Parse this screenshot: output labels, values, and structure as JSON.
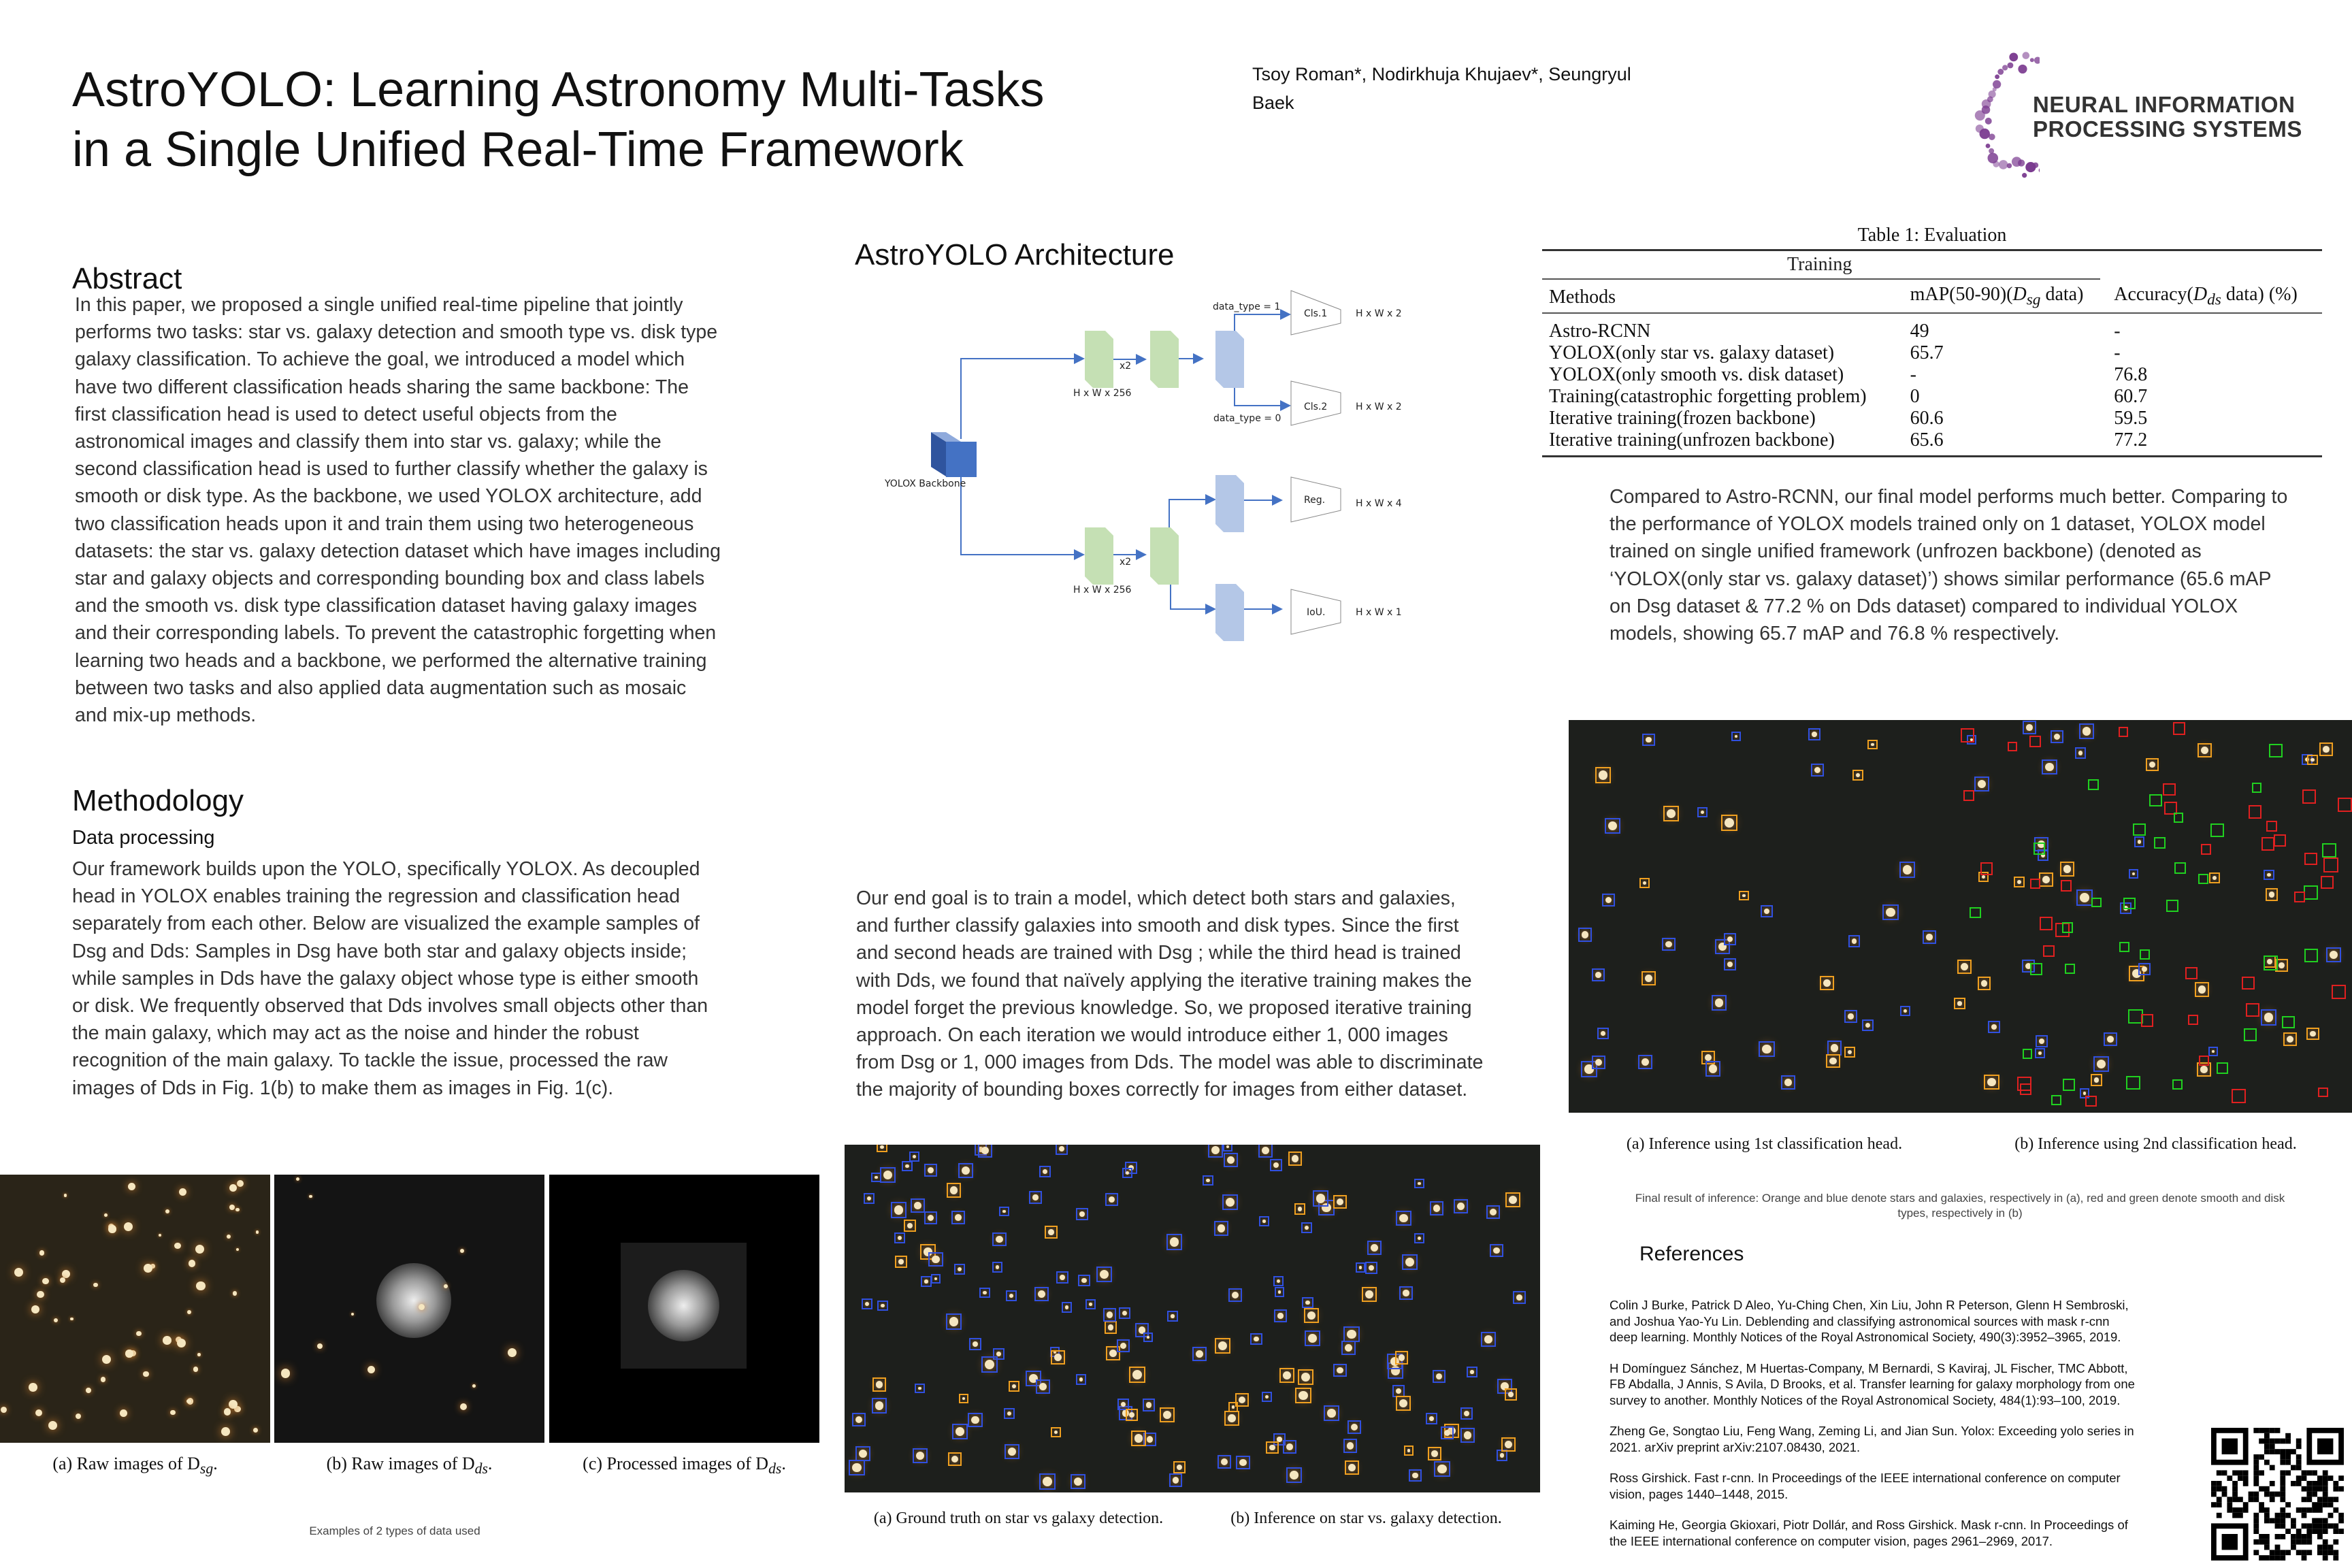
{
  "header": {
    "title_line1": "AstroYOLO: Learning Astronomy Multi-Tasks",
    "title_line2": "in a Single Unified Real-Time Framework",
    "authors_line1": "Tsoy Roman*, Nodirkhuja Khujaev*, Seungryul",
    "authors_line2": "Baek",
    "logo_line1": "NEURAL INFORMATION",
    "logo_line2": "PROCESSING SYSTEMS",
    "logo_color": "#7a3a8f"
  },
  "abstract": {
    "heading": "Abstract",
    "text": "In this paper, we proposed a single unified real-time pipeline that jointly performs two tasks: star vs. galaxy detection and smooth type vs. disk type galaxy classification. To achieve the goal, we introduced a model which have two different classification heads sharing the same backbone: The first classification head is used to detect useful objects from the astronomical images and classify them into star vs. galaxy; while the second classification head is used to further classify whether the galaxy is smooth or disk type. As the backbone, we used YOLOX architecture, add two classification heads upon it and train them using two heterogeneous datasets: the star vs. galaxy detection dataset which have images including star and galaxy objects and corresponding bounding box and class labels and the smooth vs. disk type classification dataset having galaxy images and their corresponding labels. To prevent the catastrophic forgetting when learning two heads and a backbone, we performed the alternative training between two tasks and also applied data augmentation such as mosaic and mix-up methods."
  },
  "methodology": {
    "heading": "Methodology",
    "subheading": "Data processing",
    "text": "Our framework builds upon the YOLO, specifically YOLOX. As decoupled head in YOLOX enables training the regression and classification head separately from each other. Below are visualized the example samples of Dsg and Dds: Samples in Dsg have both star and galaxy objects inside; while samples in Dds have the galaxy object whose type is either smooth or disk. We frequently observed that Dds involves small objects other than the main galaxy, which may act as the noise and hinder the robust recognition of the main galaxy. To tackle the issue, processed the raw images of Dds in Fig. 1(b) to make them as images in Fig. 1(c).",
    "fig_captions": [
      "(a) Raw images of D",
      "(b) Raw images of D",
      "(c) Processed images of D"
    ],
    "fig_subscripts": [
      "sg",
      "ds",
      "ds"
    ],
    "fig_note": "Examples of 2 types of data used"
  },
  "architecture": {
    "heading": "AstroYOLO Architecture",
    "backbone": "YOLOX Backbone",
    "dim256": "H x W x 256",
    "x2": "x2",
    "dt1": "data_type = 1",
    "dt0": "data_type = 0",
    "heads": [
      {
        "name": "Cls.1",
        "dim": "H x W x 2"
      },
      {
        "name": "Cls.2",
        "dim": "H x W x 2"
      },
      {
        "name": "Reg.",
        "dim": "H x W x 4"
      },
      {
        "name": "IoU.",
        "dim": "H x W x 1"
      }
    ],
    "text": "Our end goal is to train a model, which detect both stars and galaxies, and further classify galaxies into smooth and disk types. Since the first and second heads are trained with Dsg ; while the third head is trained with Dds, we found that naïvely applying the iterative training makes the model forget the previous knowledge. So, we proposed iterative training approach. On each iteration we would introduce either 1, 000 images from Dsg or 1, 000 images from Dds. The model was able to discriminate the majority of bounding boxes correctly for images from either dataset.",
    "fig_captions": [
      "(a) Ground truth on star vs galaxy detection.",
      "(b) Inference on star vs. galaxy detection."
    ]
  },
  "table": {
    "caption": "Table 1: Evaluation",
    "group": "Training",
    "headers": [
      "Methods",
      "mAP(50-90)(",
      "Accuracy("
    ],
    "header_math": [
      "D",
      "sg",
      " data)",
      "D",
      "ds",
      " data) (%)"
    ],
    "rows": [
      [
        "Astro-RCNN",
        "49",
        "-"
      ],
      [
        "YOLOX(only star vs. galaxy dataset)",
        "65.7",
        "-"
      ],
      [
        "YOLOX(only smooth vs. disk dataset)",
        "-",
        "76.8"
      ],
      [
        "Training(catastrophic forgetting problem)",
        "0",
        "60.7"
      ],
      [
        "Iterative training(frozen backbone)",
        "60.6",
        "59.5"
      ],
      [
        "Iterative training(unfrozen backbone)",
        "65.6",
        "77.2"
      ]
    ]
  },
  "results": {
    "text": "Compared to Astro-RCNN, our final model performs much better. Comparing to the performance of YOLOX models trained only on 1 dataset, YOLOX model trained on single unified framework (unfrozen backbone) (denoted as ‘YOLOX(only star vs. galaxy dataset)’) shows similar performance (65.6 mAP on Dsg dataset & 77.2 % on Dds dataset) compared to individual YOLOX models, showing 65.7 mAP and 76.8 % respectively.",
    "fig_captions": [
      "(a) Inference using 1st classification head.",
      "(b) Inference using 2nd classification head."
    ],
    "fig_note": "Final result  of inference: Orange and blue denote stars and galaxies, respectively in (a), red and green denote smooth and disk types, respectively in (b)",
    "box_colors": {
      "star": "#f0a020",
      "galaxy": "#3050e0",
      "smooth": "#e02020",
      "disk": "#20d020"
    }
  },
  "references": {
    "heading": "References",
    "items": [
      " Colin J Burke, Patrick D Aleo, Yu-Ching Chen, Xin Liu, John R Peterson, Glenn H Sembroski, and Joshua Yao-Yu Lin. Deblending and classifying astronomical sources with mask r-cnn deep learning. Monthly Notices of the Royal Astronomical Society, 490(3):3952–3965, 2019.",
      "H Domínguez Sánchez, M Huertas-Company, M Bernardi, S Kaviraj, JL Fischer, TMC Abbott, FB Abdalla, J Annis, S Avila, D Brooks, et al. Transfer learning for galaxy morphology from one survey to another. Monthly Notices of the Royal Astronomical Society, 484(1):93–100, 2019.",
      "Zheng Ge, Songtao Liu, Feng Wang, Zeming Li, and Jian Sun. Yolox: Exceeding yolo series in 2021. arXiv preprint arXiv:2107.08430, 2021.",
      " Ross Girshick. Fast r-cnn. In Proceedings of the IEEE international conference on computer vision, pages 1440–1448, 2015.",
      "Kaiming He, Georgia Gkioxari, Piotr Dollár, and Ross Girshick. Mask r-cnn. In Proceedings of the IEEE international conference on computer vision, pages 2961–2969, 2017."
    ]
  }
}
